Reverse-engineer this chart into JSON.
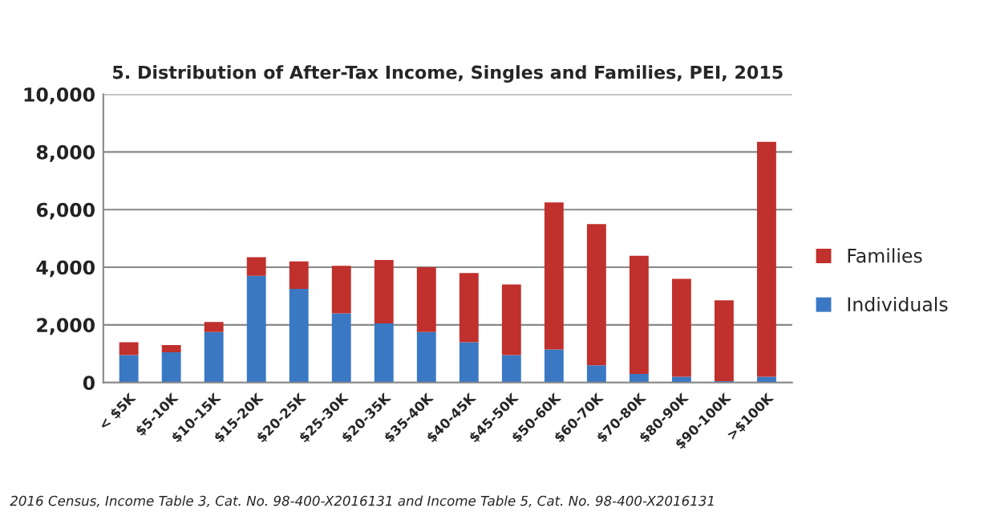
{
  "chart_data": {
    "type": "bar",
    "stacked": true,
    "title": "5. Distribution of After-Tax Income, Singles and Families, PEI, 2015",
    "categories": [
      "< $5K",
      "$5-10K",
      "$10-15K",
      "$15-20K",
      "$20-25K",
      "$25-30K",
      "$20-35K",
      "$35-40K",
      "$40-45K",
      "$45-50K",
      "$50-60K",
      "$60-70K",
      "$70-80K",
      "$80-90K",
      "$90-100K",
      ">$100K"
    ],
    "series": [
      {
        "name": "Individuals",
        "color": "#3a78c4",
        "values": [
          950,
          1050,
          1750,
          3700,
          3250,
          2400,
          2050,
          1750,
          1400,
          950,
          1150,
          600,
          300,
          200,
          50,
          200
        ]
      },
      {
        "name": "Families",
        "color": "#c0302c",
        "values": [
          450,
          250,
          350,
          650,
          950,
          1650,
          2200,
          2250,
          2400,
          2450,
          5100,
          4900,
          4100,
          3400,
          2800,
          8150
        ]
      }
    ],
    "ylim": [
      0,
      10000
    ],
    "yticks": [
      {
        "value": 0,
        "label": "0"
      },
      {
        "value": 2000,
        "label": "2,000"
      },
      {
        "value": 4000,
        "label": "4,000"
      },
      {
        "value": 6000,
        "label": "6,000"
      },
      {
        "value": 8000,
        "label": "8,000"
      },
      {
        "value": 10000,
        "label": "10,000"
      }
    ],
    "grid": "y",
    "legend": "right",
    "annotations": [
      "2016 Census, Income Table 3, Cat. No. 98-400-X2016131 and Income Table 5, Cat. No. 98-400-X2016131"
    ]
  }
}
